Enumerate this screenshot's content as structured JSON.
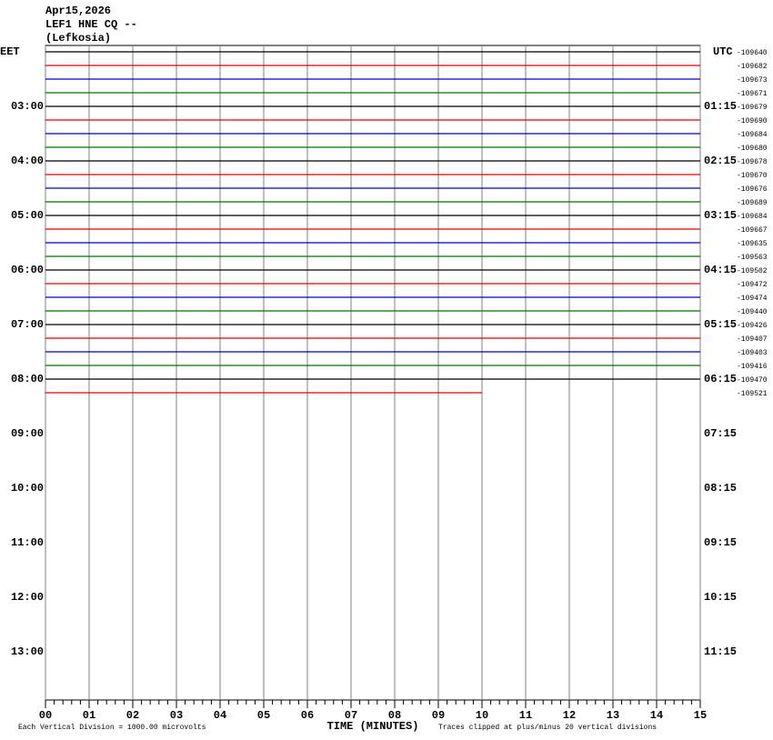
{
  "chart_data": {
    "type": "helicorder",
    "title": [
      "Apr15,2026",
      "LEF1 HNE CQ --",
      "(Lefkosia)"
    ],
    "left_zone": "EET",
    "right_zone": "UTC",
    "left_labels": [
      "03:00",
      "04:00",
      "05:00",
      "06:00",
      "07:00",
      "08:00",
      "09:00",
      "10:00",
      "11:00",
      "12:00",
      "13:00"
    ],
    "right_labels": [
      "01:15",
      "02:15",
      "03:15",
      "04:15",
      "05:15",
      "06:15",
      "07:15",
      "08:15",
      "09:15",
      "10:15",
      "11:15"
    ],
    "offsets": [
      -109640,
      -109682,
      -109673,
      -109671,
      -109679,
      -109690,
      -109684,
      -109680,
      -109678,
      -109670,
      -109676,
      -109689,
      -109684,
      -109667,
      -109635,
      -109563,
      -109502,
      -109472,
      -109474,
      -109440,
      -109426,
      -109407,
      -109403,
      -109416,
      -109470,
      -109521
    ],
    "colors": [
      "#000000",
      "#e00000",
      "#0000c8",
      "#007000"
    ],
    "last_trace_end": 10,
    "xlim": [
      0,
      15
    ],
    "xticks": [
      {
        "value": 0,
        "label": "00"
      },
      {
        "value": 1,
        "label": "01"
      },
      {
        "value": 2,
        "label": "02"
      },
      {
        "value": 3,
        "label": "03"
      },
      {
        "value": 4,
        "label": "04"
      },
      {
        "value": 5,
        "label": "05"
      },
      {
        "value": 6,
        "label": "06"
      },
      {
        "value": 7,
        "label": "07"
      },
      {
        "value": 8,
        "label": "08"
      },
      {
        "value": 9,
        "label": "09"
      },
      10,
      11,
      12,
      13,
      14,
      15
    ],
    "xlabel": "TIME (MINUTES)",
    "scale_note": "Each Vertical Division = 1000.00 microvolts",
    "clip_note": "Traces clipped at plus/minus 20 vertical divisions",
    "grid": true
  }
}
